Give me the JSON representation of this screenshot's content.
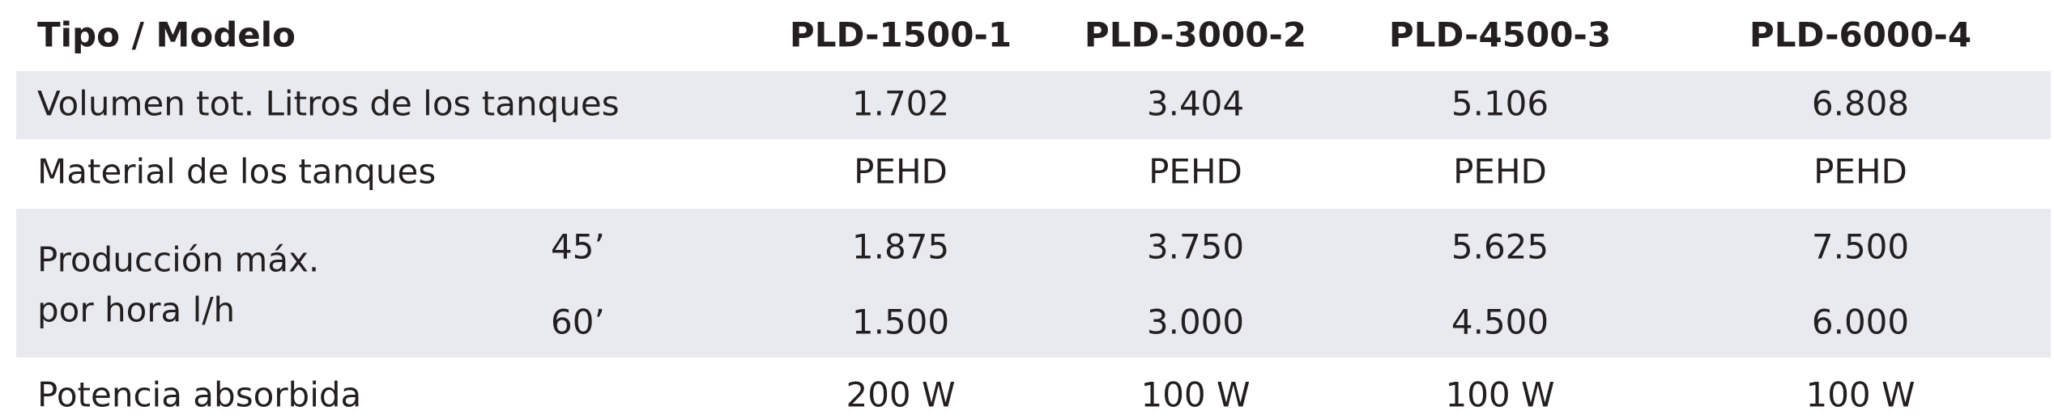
{
  "header": {
    "title": "Tipo / Modelo",
    "models": [
      "PLD-1500-1",
      "PLD-3000-2",
      "PLD-4500-3",
      "PLD-6000-4"
    ]
  },
  "rows": [
    {
      "label": "Volumen tot. Litros de los tanques",
      "values": [
        "1.702",
        "3.404",
        "5.106",
        "6.808"
      ]
    },
    {
      "label": "Material de los tanques",
      "values": [
        "PEHD",
        "PEHD",
        "PEHD",
        "PEHD"
      ]
    },
    {
      "label_lines": [
        "Producción máx.",
        "por hora l/h"
      ],
      "subrows": [
        {
          "label": "45’",
          "values": [
            "1.875",
            "3.750",
            "5.625",
            "7.500"
          ]
        },
        {
          "label": "60’",
          "values": [
            "1.500",
            "3.000",
            "4.500",
            "6.000"
          ]
        }
      ]
    },
    {
      "label": "Potencia absorbida",
      "values": [
        "200 W",
        "100 W",
        "100 W",
        "100 W"
      ]
    }
  ]
}
